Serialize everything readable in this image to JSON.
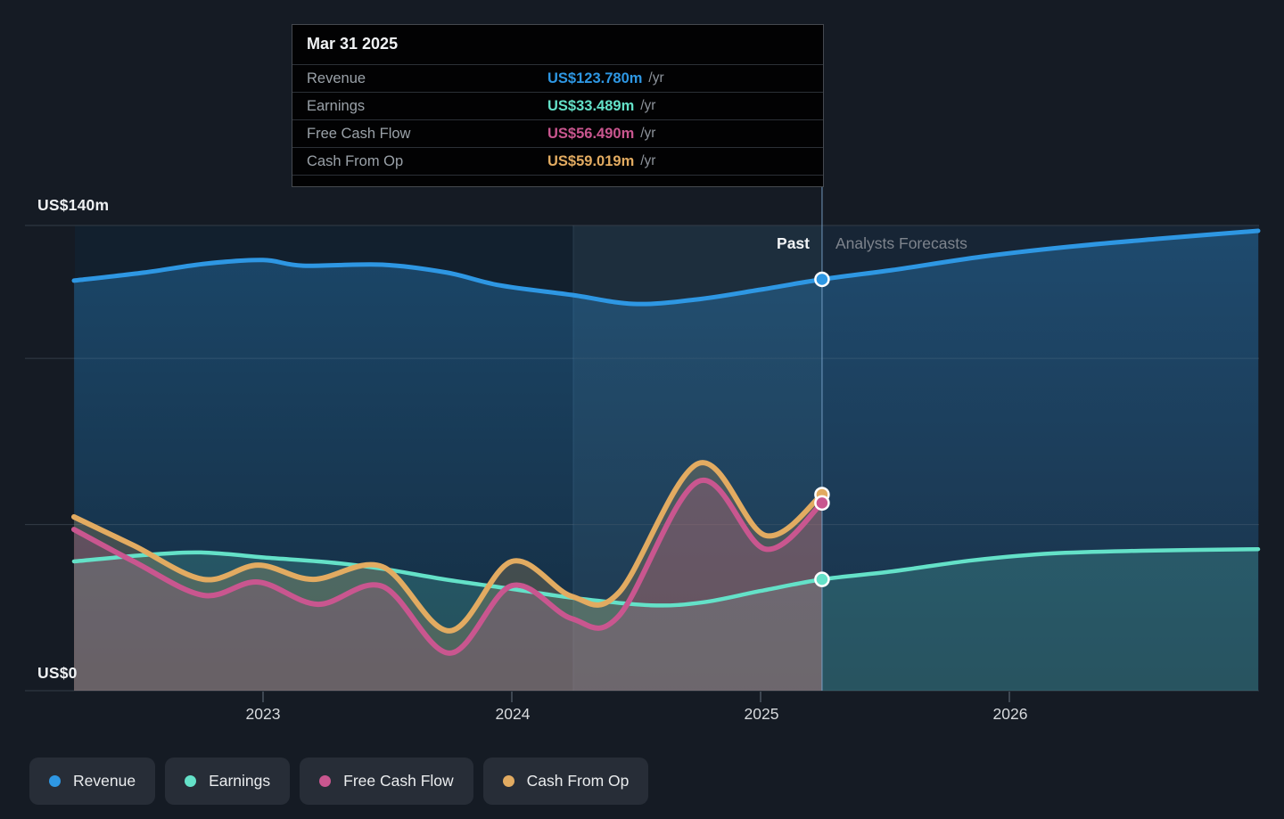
{
  "tooltip": {
    "date": "Mar 31 2025",
    "rows": [
      {
        "label": "Revenue",
        "value": "US$123.780m",
        "unit": "/yr",
        "series": "revenue"
      },
      {
        "label": "Earnings",
        "value": "US$33.489m",
        "unit": "/yr",
        "series": "earnings"
      },
      {
        "label": "Free Cash Flow",
        "value": "US$56.490m",
        "unit": "/yr",
        "series": "fcf"
      },
      {
        "label": "Cash From Op",
        "value": "US$59.019m",
        "unit": "/yr",
        "series": "cashop"
      }
    ]
  },
  "y_axis": {
    "top_label": "US$140m",
    "bottom_label": "US$0"
  },
  "x_axis": {
    "ticks": [
      "2023",
      "2024",
      "2025",
      "2026"
    ]
  },
  "annotations": {
    "past_label": "Past",
    "forecast_label": "Analysts Forecasts"
  },
  "legend": [
    {
      "label": "Revenue",
      "series": "revenue"
    },
    {
      "label": "Earnings",
      "series": "earnings"
    },
    {
      "label": "Free Cash Flow",
      "series": "fcf"
    },
    {
      "label": "Cash From Op",
      "series": "cashop"
    }
  ],
  "colors": {
    "revenue": "#2e97e3",
    "earnings": "#64e1c8",
    "fcf": "#c9568f",
    "cashop": "#e2ab61"
  },
  "chart_data": {
    "type": "line",
    "title": "Earnings and Revenue Growth - Past and Analysts Forecasts",
    "x_unit": "decimal-year",
    "x_range": [
      2022.24,
      2027.0
    ],
    "ylim": [
      0,
      140
    ],
    "y_gridline_values_usd_m": [
      0,
      50,
      100,
      140
    ],
    "x_tick_years": [
      2023,
      2024,
      2025,
      2026
    ],
    "divider_x": 2025.247,
    "divider_date": "Mar 31 2025",
    "highlight_band_x": [
      2024.247,
      2025.247
    ],
    "values_unit": "US$ millions per year",
    "series": [
      {
        "name": "Revenue",
        "key": "revenue",
        "region": "past+forecast",
        "points": [
          [
            2022.24,
            123.4
          ],
          [
            2022.52,
            125.8
          ],
          [
            2022.77,
            128.5
          ],
          [
            2023.0,
            129.6
          ],
          [
            2023.16,
            127.9
          ],
          [
            2023.48,
            128.2
          ],
          [
            2023.74,
            125.8
          ],
          [
            2023.95,
            122.0
          ],
          [
            2024.24,
            119.1
          ],
          [
            2024.49,
            116.4
          ],
          [
            2024.74,
            117.7
          ],
          [
            2025.0,
            120.7
          ],
          [
            2025.247,
            123.78
          ],
          [
            2025.53,
            126.6
          ],
          [
            2025.89,
            130.6
          ],
          [
            2026.24,
            133.6
          ],
          [
            2026.6,
            136.0
          ],
          [
            2027.0,
            138.4
          ]
        ]
      },
      {
        "name": "Earnings",
        "key": "earnings",
        "region": "past+forecast",
        "points": [
          [
            2022.24,
            38.9
          ],
          [
            2022.52,
            40.8
          ],
          [
            2022.75,
            41.6
          ],
          [
            2023.02,
            40.0
          ],
          [
            2023.27,
            38.6
          ],
          [
            2023.48,
            36.7
          ],
          [
            2023.73,
            33.5
          ],
          [
            2024.0,
            30.6
          ],
          [
            2024.25,
            27.9
          ],
          [
            2024.56,
            25.7
          ],
          [
            2024.77,
            26.6
          ],
          [
            2025.0,
            30.0
          ],
          [
            2025.247,
            33.489
          ],
          [
            2025.53,
            35.9
          ],
          [
            2025.85,
            39.2
          ],
          [
            2026.17,
            41.3
          ],
          [
            2026.53,
            42.1
          ],
          [
            2027.0,
            42.6
          ]
        ]
      },
      {
        "name": "Cash From Op",
        "key": "cashop",
        "region": "past",
        "points": [
          [
            2022.24,
            52.3
          ],
          [
            2022.48,
            43.7
          ],
          [
            2022.76,
            33.5
          ],
          [
            2022.98,
            37.8
          ],
          [
            2023.2,
            33.5
          ],
          [
            2023.48,
            37.3
          ],
          [
            2023.75,
            18.0
          ],
          [
            2024.0,
            38.9
          ],
          [
            2024.24,
            28.4
          ],
          [
            2024.43,
            29.5
          ],
          [
            2024.75,
            68.4
          ],
          [
            2025.02,
            46.7
          ],
          [
            2025.247,
            59.019
          ]
        ]
      },
      {
        "name": "Free Cash Flow",
        "key": "fcf",
        "region": "past",
        "points": [
          [
            2022.24,
            48.5
          ],
          [
            2022.48,
            38.9
          ],
          [
            2022.76,
            28.7
          ],
          [
            2022.98,
            32.7
          ],
          [
            2023.22,
            26.0
          ],
          [
            2023.48,
            31.4
          ],
          [
            2023.75,
            11.3
          ],
          [
            2024.0,
            31.6
          ],
          [
            2024.24,
            21.7
          ],
          [
            2024.43,
            22.5
          ],
          [
            2024.75,
            63.0
          ],
          [
            2025.02,
            42.6
          ],
          [
            2025.247,
            56.49
          ]
        ]
      }
    ]
  }
}
